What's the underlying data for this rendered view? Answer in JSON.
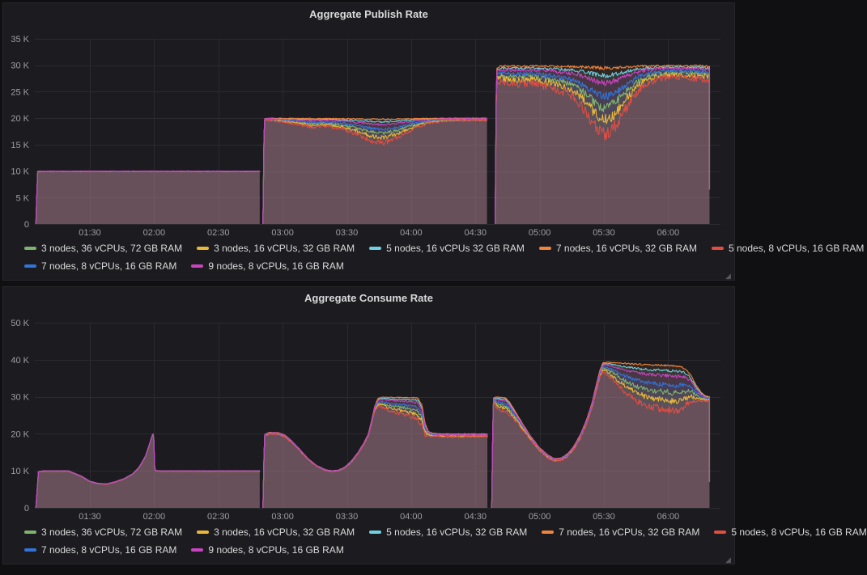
{
  "chart_data": [
    {
      "type": "area",
      "title": "Aggregate Publish Rate",
      "ylim": [
        0,
        35000
      ],
      "y_ticks": [
        {
          "v": 0,
          "label": "0"
        },
        {
          "v": 5000,
          "label": "5 K"
        },
        {
          "v": 10000,
          "label": "10 K"
        },
        {
          "v": 15000,
          "label": "15 K"
        },
        {
          "v": 20000,
          "label": "20 K"
        },
        {
          "v": 25000,
          "label": "25 K"
        },
        {
          "v": 30000,
          "label": "30 K"
        },
        {
          "v": 35000,
          "label": "35 K"
        }
      ],
      "x_range": [
        64.3,
        379.5
      ],
      "x_ticks": [
        {
          "t": 90,
          "label": "01:30"
        },
        {
          "t": 120,
          "label": "02:00"
        },
        {
          "t": 150,
          "label": "02:30"
        },
        {
          "t": 180,
          "label": "03:00"
        },
        {
          "t": 210,
          "label": "03:30"
        },
        {
          "t": 240,
          "label": "04:00"
        },
        {
          "t": 270,
          "label": "04:30"
        },
        {
          "t": 300,
          "label": "05:00"
        },
        {
          "t": 330,
          "label": "05:30"
        },
        {
          "t": 360,
          "label": "06:00"
        }
      ],
      "grid": true,
      "legend_position": "bottom",
      "legend_rows": [
        [
          0,
          1,
          2,
          3,
          4
        ],
        [
          5,
          6
        ]
      ],
      "series": [
        {
          "name": "3 nodes, 36 vCPUs, 72 GB RAM",
          "color": "#7EB26D",
          "depth": 0.62
        },
        {
          "name": "3 nodes, 16 vCPUs, 32 GB RAM",
          "color": "#EAB839",
          "depth": 0.8
        },
        {
          "name": "5 nodes, 16 vCPUs 32 GB RAM",
          "color": "#6ED0E0",
          "depth": 0.15
        },
        {
          "name": "7 nodes, 16 vCPUs, 32 GB RAM",
          "color": "#EF843C",
          "depth": 0.04
        },
        {
          "name": "5 nodes, 8 vCPUs, 16 GB RAM",
          "color": "#E24D42",
          "depth": 1.0
        },
        {
          "name": "7 nodes, 8 vCPUs, 16 GB RAM",
          "color": "#3274D9",
          "depth": 0.46
        },
        {
          "name": "9 nodes, 8 vCPUs, 16 GB RAM",
          "color": "#C944C1",
          "depth": 0.26
        }
      ],
      "noise_seed": 7,
      "segments": [
        {
          "t0": 64.8,
          "t1": 169.3,
          "noise": 60,
          "base": [
            [
              64.8,
              0
            ],
            [
              65.6,
              9950
            ],
            [
              70,
              10000
            ],
            [
              169.3,
              10000
            ]
          ],
          "spread": [
            [
              64.8,
              60
            ],
            [
              169.3,
              60
            ]
          ]
        },
        {
          "t0": 170.8,
          "t1": 275.4,
          "noise": 120,
          "base": [
            [
              170.8,
              0
            ],
            [
              171.4,
              19900
            ],
            [
              173,
              20000
            ],
            [
              275.4,
              20000
            ]
          ],
          "spread": [
            [
              171,
              250
            ],
            [
              178,
              600
            ],
            [
              186,
              1100
            ],
            [
              194,
              1700
            ],
            [
              201,
              1500
            ],
            [
              208,
              2100
            ],
            [
              215,
              3100
            ],
            [
              222,
              4300
            ],
            [
              227,
              4600
            ],
            [
              232,
              4000
            ],
            [
              237,
              2900
            ],
            [
              243,
              1700
            ],
            [
              249,
              900
            ],
            [
              256,
              550
            ],
            [
              265,
              420
            ],
            [
              275.4,
              420
            ]
          ]
        },
        {
          "t0": 279.2,
          "t1": 379.3,
          "noise": 300,
          "end": 6500,
          "base": [
            [
              279.2,
              0
            ],
            [
              279.8,
              29600
            ],
            [
              282,
              30000
            ],
            [
              375,
              30000
            ],
            [
              379.3,
              29900
            ]
          ],
          "spread": [
            [
              279.6,
              2800
            ],
            [
              284,
              3300
            ],
            [
              290,
              3600
            ],
            [
              296,
              3300
            ],
            [
              302,
              3900
            ],
            [
              308,
              4600
            ],
            [
              313,
              5400
            ],
            [
              317,
              6400
            ],
            [
              321,
              8400
            ],
            [
              325,
              10800
            ],
            [
              329,
              12800
            ],
            [
              332,
              12900
            ],
            [
              336,
              11000
            ],
            [
              340,
              8200
            ],
            [
              345,
              5200
            ],
            [
              350,
              3400
            ],
            [
              356,
              2500
            ],
            [
              362,
              2200
            ],
            [
              369,
              2400
            ],
            [
              379.3,
              2700
            ]
          ]
        }
      ]
    },
    {
      "type": "area",
      "title": "Aggregate Consume Rate",
      "ylim": [
        0,
        50000
      ],
      "y_ticks": [
        {
          "v": 0,
          "label": "0"
        },
        {
          "v": 10000,
          "label": "10 K"
        },
        {
          "v": 20000,
          "label": "20 K"
        },
        {
          "v": 30000,
          "label": "30 K"
        },
        {
          "v": 40000,
          "label": "40 K"
        },
        {
          "v": 50000,
          "label": "50 K"
        }
      ],
      "x_range": [
        64.3,
        379.5
      ],
      "x_ticks": [
        {
          "t": 90,
          "label": "01:30"
        },
        {
          "t": 120,
          "label": "02:00"
        },
        {
          "t": 150,
          "label": "02:30"
        },
        {
          "t": 180,
          "label": "03:00"
        },
        {
          "t": 210,
          "label": "03:30"
        },
        {
          "t": 240,
          "label": "04:00"
        },
        {
          "t": 270,
          "label": "04:30"
        },
        {
          "t": 300,
          "label": "05:00"
        },
        {
          "t": 330,
          "label": "05:30"
        },
        {
          "t": 360,
          "label": "06:00"
        }
      ],
      "grid": true,
      "legend_position": "bottom",
      "legend_rows": [
        [
          0,
          1,
          2,
          3,
          4
        ],
        [
          5,
          6
        ]
      ],
      "series": [
        {
          "name": "3 nodes, 36 vCPUs, 72 GB RAM",
          "color": "#7EB26D",
          "depth": 0.62
        },
        {
          "name": "3 nodes, 16 vCPUs, 32 GB RAM",
          "color": "#EAB839",
          "depth": 0.8
        },
        {
          "name": "5 nodes, 16 vCPUs, 32 GB RAM",
          "color": "#6ED0E0",
          "depth": 0.15
        },
        {
          "name": "7 nodes, 16 vCPUs, 32 GB RAM",
          "color": "#EF843C",
          "depth": 0.04
        },
        {
          "name": "5 nodes, 8 vCPUs, 16 GB RAM",
          "color": "#E24D42",
          "depth": 1.0
        },
        {
          "name": "7 nodes, 8 vCPUs, 16 GB RAM",
          "color": "#3274D9",
          "depth": 0.46
        },
        {
          "name": "9 nodes, 8 vCPUs, 16 GB RAM",
          "color": "#C944C1",
          "depth": 0.26
        }
      ],
      "noise_seed": 13,
      "segments": [
        {
          "t0": 64.8,
          "t1": 169.3,
          "noise": 50,
          "base": [
            [
              64.8,
              0
            ],
            [
              66,
              9800
            ],
            [
              68,
              10000
            ],
            [
              80,
              10000
            ],
            [
              86,
              8600
            ],
            [
              90,
              7200
            ],
            [
              94,
              6600
            ],
            [
              98,
              6500
            ],
            [
              102,
              7100
            ],
            [
              106,
              7900
            ],
            [
              110,
              9200
            ],
            [
              113,
              11000
            ],
            [
              116,
              14000
            ],
            [
              118,
              17500
            ],
            [
              119.3,
              19900
            ],
            [
              119.8,
              20000
            ],
            [
              120.3,
              10200
            ],
            [
              122,
              10000
            ],
            [
              169.3,
              10000
            ]
          ],
          "spread": [
            [
              64.8,
              120
            ],
            [
              169.3,
              120
            ]
          ]
        },
        {
          "t0": 170.8,
          "t1": 275.6,
          "noise": 120,
          "base": [
            [
              170.8,
              0
            ],
            [
              171.5,
              19800
            ],
            [
              174,
              20400
            ],
            [
              178,
              20300
            ],
            [
              181,
              19700
            ],
            [
              184,
              18200
            ],
            [
              188,
              15800
            ],
            [
              192,
              13200
            ],
            [
              196,
              11400
            ],
            [
              200,
              10300
            ],
            [
              203,
              10000
            ],
            [
              206,
              10200
            ],
            [
              209,
              11000
            ],
            [
              212,
              12600
            ],
            [
              215,
              14800
            ],
            [
              218,
              17600
            ],
            [
              220,
              20000
            ],
            [
              221.7,
              24000
            ],
            [
              223,
              27500
            ],
            [
              224.5,
              29600
            ],
            [
              226,
              30000
            ],
            [
              243,
              30000
            ],
            [
              245,
              28000
            ],
            [
              246.5,
              23000
            ],
            [
              248,
              20700
            ],
            [
              250,
              20200
            ],
            [
              254,
              20000
            ],
            [
              275.6,
              20000
            ]
          ],
          "spread": [
            [
              171,
              400
            ],
            [
              180,
              500
            ],
            [
              188,
              280
            ],
            [
              196,
              200
            ],
            [
              204,
              200
            ],
            [
              212,
              250
            ],
            [
              218,
              400
            ],
            [
              222,
              900
            ],
            [
              225,
              2400
            ],
            [
              229,
              3600
            ],
            [
              233,
              4300
            ],
            [
              237,
              4800
            ],
            [
              241,
              5600
            ],
            [
              244,
              6200
            ],
            [
              246,
              4200
            ],
            [
              248,
              1100
            ],
            [
              252,
              800
            ],
            [
              262,
              800
            ],
            [
              275.6,
              800
            ]
          ]
        },
        {
          "t0": 277.6,
          "t1": 379.3,
          "noise": 140,
          "end": 7000,
          "base": [
            [
              277.6,
              0
            ],
            [
              278.3,
              29700
            ],
            [
              280,
              30000
            ],
            [
              284,
              29900
            ],
            [
              286,
              28600
            ],
            [
              289,
              25800
            ],
            [
              292,
              22800
            ],
            [
              296,
              19200
            ],
            [
              300,
              16200
            ],
            [
              304,
              14200
            ],
            [
              307,
              13300
            ],
            [
              310,
              13500
            ],
            [
              313,
              14600
            ],
            [
              316,
              16700
            ],
            [
              319,
              19800
            ],
            [
              322,
              24000
            ],
            [
              324.5,
              28500
            ],
            [
              326.5,
              33500
            ],
            [
              328,
              37000
            ],
            [
              329.5,
              39200
            ],
            [
              332,
              39500
            ],
            [
              340,
              39300
            ],
            [
              350,
              39100
            ],
            [
              358,
              39000
            ],
            [
              365,
              38700
            ],
            [
              368,
              38000
            ],
            [
              370.5,
              36200
            ],
            [
              373,
              33300
            ],
            [
              375.5,
              31200
            ],
            [
              377.5,
              30300
            ],
            [
              379.3,
              30000
            ]
          ],
          "spread": [
            [
              278,
              700
            ],
            [
              280,
              3000
            ],
            [
              283,
              3800
            ],
            [
              287,
              3200
            ],
            [
              291,
              1800
            ],
            [
              296,
              1000
            ],
            [
              302,
              750
            ],
            [
              308,
              700
            ],
            [
              314,
              800
            ],
            [
              319,
              1000
            ],
            [
              323,
              1300
            ],
            [
              327,
              1900
            ],
            [
              330,
              2600
            ],
            [
              334,
              4800
            ],
            [
              340,
              8200
            ],
            [
              346,
              10500
            ],
            [
              352,
              11800
            ],
            [
              358,
              12300
            ],
            [
              364,
              12600
            ],
            [
              368,
              10500
            ],
            [
              371,
              6800
            ],
            [
              374,
              3600
            ],
            [
              376.5,
              1800
            ],
            [
              379.3,
              1100
            ]
          ]
        }
      ]
    }
  ],
  "ui": {
    "resize_glyph": "◢"
  }
}
